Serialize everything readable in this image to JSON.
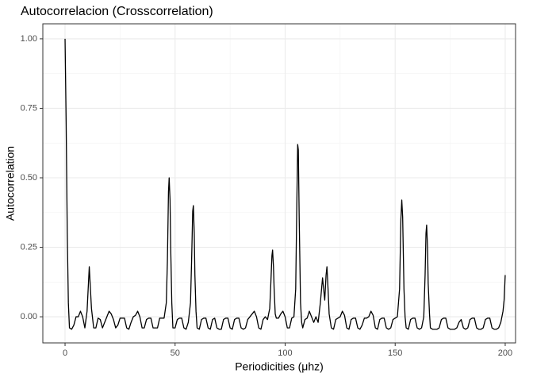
{
  "chart_data": {
    "type": "line",
    "title": "Autocorrelacion (Crosscorrelation)",
    "x_label": "Periodicities (μhz)",
    "y_label": "Autocorrelation",
    "color": "#000000",
    "grid": true,
    "xlim": [
      -10.1,
      204.7
    ],
    "ylim": [
      -0.094,
      1.054
    ],
    "xticks": [
      0,
      50,
      100,
      150,
      200
    ],
    "yticks": [
      {
        "value": 0,
        "label": "0.00"
      },
      {
        "value": 0.25,
        "label": "0.25"
      },
      {
        "value": 0.5,
        "label": "0.50"
      },
      {
        "value": 0.75,
        "label": "0.75"
      },
      {
        "value": 1,
        "label": "1.00"
      }
    ],
    "x_minor_ticks": [
      25,
      75,
      125,
      175
    ],
    "y_minor_ticks": [
      0.125,
      0.375,
      0.625,
      0.875
    ],
    "x": [
      0,
      0.5,
      1,
      1.5,
      2,
      3,
      4,
      5,
      6,
      7,
      8,
      9,
      10,
      11,
      12,
      13,
      14,
      15,
      16,
      17,
      18,
      19,
      20,
      21,
      22,
      23,
      24,
      25,
      26,
      27,
      28,
      29,
      30,
      31,
      32,
      33,
      34,
      35,
      36,
      37,
      38,
      39,
      40,
      41,
      42,
      43,
      44,
      45,
      46,
      46.5,
      47,
      47.3,
      47.7,
      48,
      48.5,
      49,
      50,
      51,
      52,
      53,
      54,
      55,
      56,
      57,
      57.5,
      58,
      58.3,
      58.7,
      59,
      59.5,
      60,
      61,
      62,
      63,
      64,
      65,
      66,
      67,
      68,
      69,
      70,
      71,
      72,
      73,
      74,
      75,
      76,
      77,
      78,
      79,
      80,
      81,
      82,
      83,
      84,
      85,
      86,
      87,
      88,
      89,
      90,
      91,
      92,
      93,
      93.5,
      94,
      94.3,
      94.7,
      95,
      95.5,
      96,
      97,
      98,
      99,
      100,
      101,
      102,
      103,
      104,
      104.8,
      105.3,
      105.7,
      106,
      106.4,
      107,
      107.5,
      108,
      109,
      110,
      111,
      112,
      113,
      114,
      115,
      116,
      117,
      117.5,
      118,
      118.6,
      119,
      119.5,
      120,
      121,
      122,
      123,
      124,
      125,
      126,
      127,
      128,
      129,
      130,
      131,
      132,
      133,
      134,
      135,
      136,
      137,
      138,
      139,
      140,
      141,
      142,
      143,
      144,
      145,
      146,
      147,
      148,
      149,
      150,
      151,
      152,
      152.6,
      153,
      153.4,
      154,
      154.5,
      155,
      156,
      157,
      158,
      159,
      160,
      161,
      162,
      163,
      163.6,
      164,
      164.3,
      164.7,
      165,
      165.6,
      166,
      167,
      168,
      169,
      170,
      171,
      172,
      173,
      174,
      175,
      176,
      177,
      178,
      179,
      180,
      181,
      182,
      183,
      184,
      185,
      186,
      187,
      188,
      189,
      190,
      191,
      192,
      193,
      194,
      195,
      196,
      197,
      198,
      199,
      199.5,
      200
    ],
    "values": [
      1.0,
      0.7,
      0.3,
      0.05,
      -0.04,
      -0.045,
      -0.03,
      0,
      0,
      0.02,
      0,
      -0.04,
      0.02,
      0.18,
      0.03,
      -0.04,
      -0.04,
      -0.005,
      -0.01,
      -0.04,
      -0.02,
      0.0,
      0.02,
      0.01,
      -0.01,
      -0.04,
      -0.03,
      -0.005,
      -0.005,
      -0.005,
      -0.04,
      -0.045,
      -0.02,
      0.0,
      0.005,
      0.02,
      0.0,
      -0.04,
      -0.04,
      -0.01,
      -0.005,
      -0.005,
      -0.04,
      -0.04,
      -0.04,
      -0.005,
      -0.005,
      -0.005,
      0.05,
      0.2,
      0.45,
      0.5,
      0.42,
      0.25,
      0.05,
      -0.04,
      -0.04,
      -0.01,
      -0.005,
      -0.005,
      -0.04,
      -0.045,
      -0.02,
      0.05,
      0.2,
      0.38,
      0.4,
      0.3,
      0.15,
      0.02,
      -0.04,
      -0.045,
      -0.01,
      -0.005,
      -0.005,
      -0.04,
      -0.045,
      -0.01,
      -0.005,
      -0.04,
      -0.045,
      -0.045,
      -0.01,
      -0.005,
      -0.005,
      -0.04,
      -0.045,
      -0.01,
      -0.005,
      -0.005,
      -0.04,
      -0.045,
      -0.04,
      -0.01,
      0.0,
      0.01,
      0.02,
      0.0,
      -0.04,
      -0.045,
      -0.01,
      0.0,
      -0.01,
      0.03,
      0.12,
      0.22,
      0.24,
      0.18,
      0.1,
      0.01,
      -0.005,
      -0.005,
      0.01,
      0.02,
      0.0,
      -0.04,
      -0.04,
      -0.005,
      0.0,
      0.1,
      0.4,
      0.62,
      0.6,
      0.35,
      0.05,
      -0.02,
      -0.04,
      -0.01,
      -0.005,
      0.02,
      0.0,
      -0.02,
      0.0,
      -0.02,
      0.05,
      0.14,
      0.1,
      0.06,
      0.15,
      0.18,
      0.1,
      0.01,
      -0.04,
      -0.045,
      -0.01,
      -0.005,
      0.0,
      0.02,
      0.005,
      -0.04,
      -0.045,
      -0.01,
      -0.005,
      -0.005,
      -0.04,
      -0.045,
      -0.03,
      -0.005,
      -0.005,
      0.0,
      0.02,
      0.005,
      -0.04,
      -0.045,
      -0.01,
      -0.005,
      -0.005,
      -0.04,
      -0.045,
      -0.04,
      -0.01,
      -0.005,
      0.0,
      0.1,
      0.35,
      0.42,
      0.36,
      0.1,
      0.0,
      -0.04,
      -0.045,
      -0.01,
      -0.005,
      -0.005,
      -0.04,
      -0.045,
      -0.04,
      0.0,
      0.15,
      0.3,
      0.33,
      0.25,
      0.12,
      0.01,
      -0.04,
      -0.045,
      -0.045,
      -0.045,
      -0.04,
      -0.01,
      -0.005,
      -0.005,
      -0.04,
      -0.045,
      -0.045,
      -0.045,
      -0.04,
      -0.02,
      -0.01,
      -0.04,
      -0.045,
      -0.04,
      -0.01,
      -0.005,
      -0.005,
      -0.04,
      -0.045,
      -0.045,
      -0.04,
      -0.01,
      -0.005,
      -0.005,
      -0.04,
      -0.045,
      -0.045,
      -0.04,
      -0.02,
      0.02,
      0.06,
      0.15
    ]
  }
}
